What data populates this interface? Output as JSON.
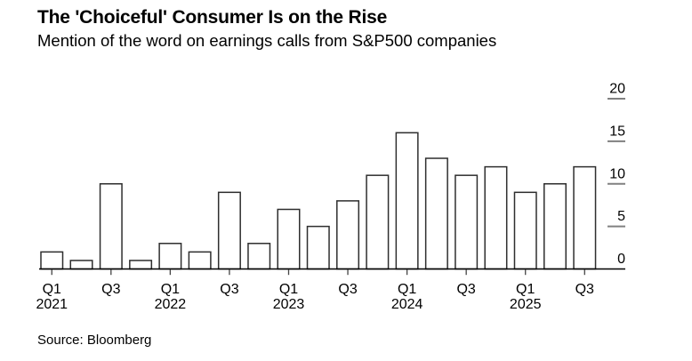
{
  "header": {
    "title": "The 'Choiceful' Consumer Is on the Rise",
    "subtitle": "Mention of the word on earnings calls from S&P500 companies"
  },
  "source": "Source: Bloomberg",
  "chart_data": {
    "type": "bar",
    "title": "The 'Choiceful' Consumer Is on the Rise",
    "subtitle": "Mention of the word on earnings calls from S&P500 companies",
    "categories": [
      "Q1 2021",
      "Q2 2021",
      "Q3 2021",
      "Q4 2021",
      "Q1 2022",
      "Q2 2022",
      "Q3 2022",
      "Q4 2022",
      "Q1 2023",
      "Q2 2023",
      "Q3 2023",
      "Q4 2023",
      "Q1 2024",
      "Q2 2024",
      "Q3 2024",
      "Q4 2024",
      "Q1 2025",
      "Q2 2025",
      "Q3 2025"
    ],
    "values": [
      2,
      1,
      10,
      1,
      3,
      2,
      9,
      3,
      7,
      5,
      8,
      11,
      16,
      13,
      11,
      12,
      9,
      10,
      12
    ],
    "x_axis_ticks": [
      {
        "index": 0,
        "label": "Q1",
        "year": "2021"
      },
      {
        "index": 2,
        "label": "Q3"
      },
      {
        "index": 4,
        "label": "Q1",
        "year": "2022"
      },
      {
        "index": 6,
        "label": "Q3"
      },
      {
        "index": 8,
        "label": "Q1",
        "year": "2023"
      },
      {
        "index": 10,
        "label": "Q3"
      },
      {
        "index": 12,
        "label": "Q1",
        "year": "2024"
      },
      {
        "index": 14,
        "label": "Q3"
      },
      {
        "index": 16,
        "label": "Q1",
        "year": "2025"
      },
      {
        "index": 18,
        "label": "Q3"
      }
    ],
    "y_axis_ticks": [
      0,
      5,
      10,
      15,
      20
    ],
    "ylim": [
      0,
      20
    ],
    "y_axis_position": "right",
    "grid": "off",
    "legend": "none",
    "colors": {
      "bar_fill": "#ffffff",
      "bar_stroke": "#2e2e2e",
      "axis_line": "#000000",
      "x_tick_mark": "#444444",
      "y_tick_dash": "#808080",
      "label_text": "#000000"
    }
  }
}
